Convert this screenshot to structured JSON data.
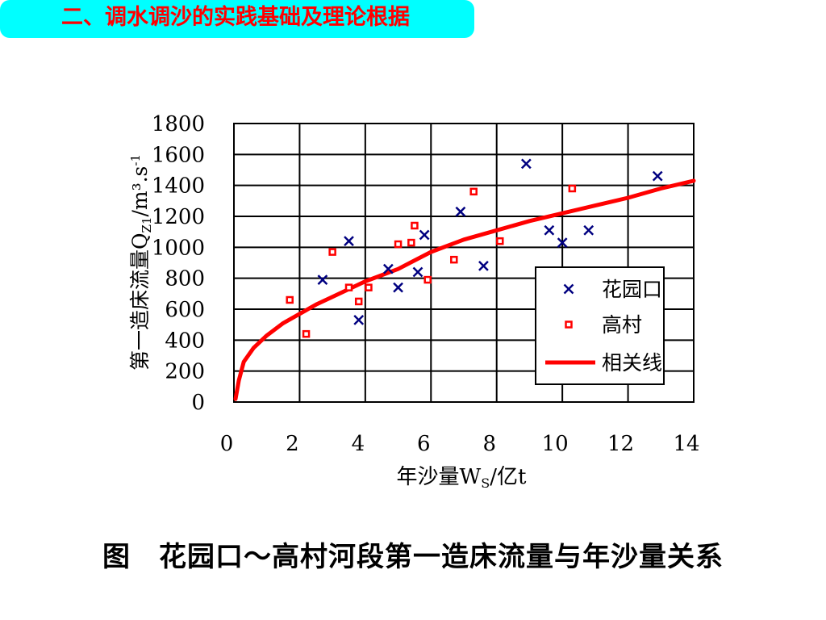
{
  "slide": {
    "title": "二、调水调沙的实践基础及理论根据",
    "caption": "图　花园口～高村河段第一造床流量与年沙量关系"
  },
  "colors": {
    "banner_bg": "#00ffff",
    "banner_text": "#ff0000",
    "huayuankou": "#000080",
    "gaocun": "#ff0000",
    "fit_line": "#ff0000"
  },
  "chart_data": {
    "type": "scatter",
    "xlim": [
      0,
      14
    ],
    "ylim": [
      0,
      1800
    ],
    "xticks": [
      "0",
      "2",
      "4",
      "6",
      "8",
      "10",
      "12",
      "14"
    ],
    "yticks": [
      "0",
      "200",
      "400",
      "600",
      "800",
      "1000",
      "1200",
      "1400",
      "1600",
      "1800"
    ],
    "xlabel": "年沙量W",
    "xlabel_sub": "S",
    "xlabel_unit": "/亿t",
    "ylabel_main": "第一造床流量Q",
    "ylabel_sub": "Z1",
    "ylabel_unit": "/m³.s",
    "ylabel_sup": "-1",
    "grid": true,
    "legend_position": "right-middle",
    "series": [
      {
        "name": "花园口",
        "marker": "x",
        "x": [
          2.7,
          3.5,
          3.8,
          4.7,
          5.0,
          5.6,
          5.8,
          6.9,
          7.6,
          8.9,
          9.6,
          10.0,
          10.8,
          12.9
        ],
        "y": [
          790,
          1040,
          530,
          860,
          740,
          840,
          1080,
          1230,
          880,
          1540,
          1110,
          1030,
          1110,
          1460
        ]
      },
      {
        "name": "高村",
        "marker": "square",
        "x": [
          1.7,
          2.2,
          3.0,
          3.5,
          3.8,
          4.1,
          5.0,
          5.4,
          5.5,
          5.9,
          6.7,
          7.3,
          8.1,
          10.3
        ],
        "y": [
          660,
          440,
          970,
          740,
          650,
          740,
          1020,
          1030,
          1140,
          790,
          920,
          1360,
          1040,
          1380
        ]
      },
      {
        "name": "相关线",
        "marker": "line",
        "x": [
          0.05,
          0.15,
          0.3,
          0.6,
          1.0,
          1.5,
          2.0,
          2.5,
          3.0,
          3.5,
          4.0,
          5.0,
          6.0,
          7.0,
          8.0,
          9.0,
          10.0,
          11.0,
          12.0,
          13.0,
          14.0
        ],
        "y": [
          20,
          140,
          260,
          350,
          430,
          510,
          570,
          630,
          680,
          730,
          780,
          860,
          970,
          1050,
          1110,
          1170,
          1220,
          1270,
          1320,
          1380,
          1430
        ]
      }
    ]
  }
}
